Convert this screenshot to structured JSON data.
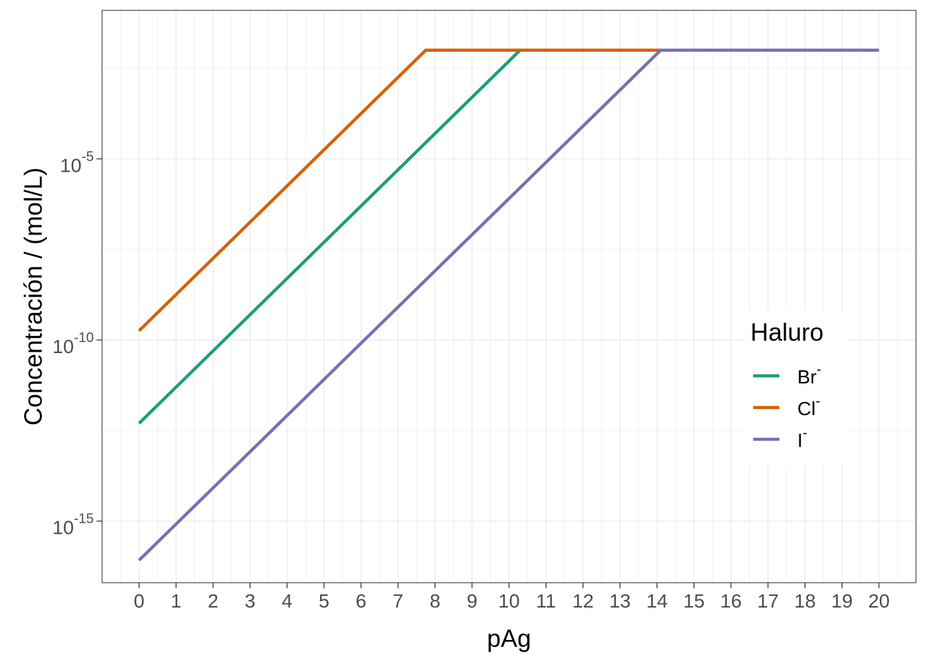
{
  "chart_data": {
    "type": "line",
    "xlabel": "pAg",
    "ylabel": "Concentración / (mol/L)",
    "xlim": [
      -1,
      21
    ],
    "x_ticks": [
      0,
      1,
      2,
      3,
      4,
      5,
      6,
      7,
      8,
      9,
      10,
      11,
      12,
      13,
      14,
      15,
      16,
      17,
      18,
      19,
      20
    ],
    "y_scale": "log10",
    "ylim_log10": [
      -16.7,
      -0.9
    ],
    "y_ticks": [
      {
        "base": "10",
        "exp": "-5",
        "value": 1e-05
      },
      {
        "base": "10",
        "exp": "-10",
        "value": 1e-10
      },
      {
        "base": "10",
        "exp": "-15",
        "value": 1e-15
      }
    ],
    "grid": true,
    "legend": {
      "title": "Haluro",
      "position": "right",
      "entries": [
        {
          "base": "Br",
          "sup": "-",
          "color": "#1B9E77"
        },
        {
          "base": "Cl",
          "sup": "-",
          "color": "#D95F02"
        },
        {
          "base": "I",
          "sup": "-",
          "color": "#7570B3"
        }
      ]
    },
    "series": [
      {
        "name": "Br-",
        "color": "#1B9E77",
        "points": [
          [
            0,
            5e-13
          ],
          [
            10.3,
            0.01
          ],
          [
            20,
            0.01
          ]
        ]
      },
      {
        "name": "Cl-",
        "color": "#D95F02",
        "points": [
          [
            0,
            1.8e-10
          ],
          [
            7.75,
            0.01
          ],
          [
            20,
            0.01
          ]
        ]
      },
      {
        "name": "I-",
        "color": "#7570B3",
        "points": [
          [
            0,
            8.3e-17
          ],
          [
            14.1,
            0.01
          ],
          [
            20,
            0.01
          ]
        ]
      }
    ]
  }
}
